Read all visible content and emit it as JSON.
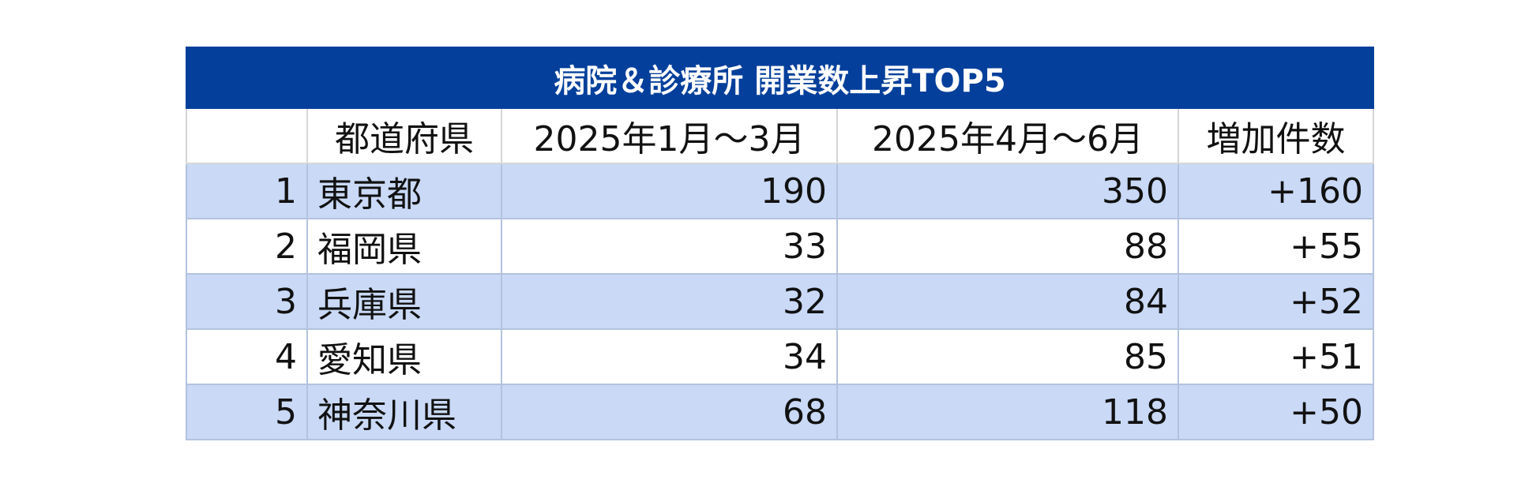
{
  "table": {
    "title": "病院＆診療所 開業数上昇TOP5",
    "header": [
      "",
      "都道府県",
      "2025年1月～3月",
      "2025年4月～6月",
      "増加件数"
    ],
    "rows": [
      [
        1,
        "東京都",
        190,
        350,
        "+160"
      ],
      [
        2,
        "福岡県",
        33,
        88,
        "+55"
      ],
      [
        3,
        "兵庫県",
        32,
        84,
        "+52"
      ],
      [
        4,
        "愛知県",
        34,
        85,
        "+51"
      ],
      [
        5,
        "神奈川県",
        68,
        118,
        "+50"
      ]
    ]
  }
}
